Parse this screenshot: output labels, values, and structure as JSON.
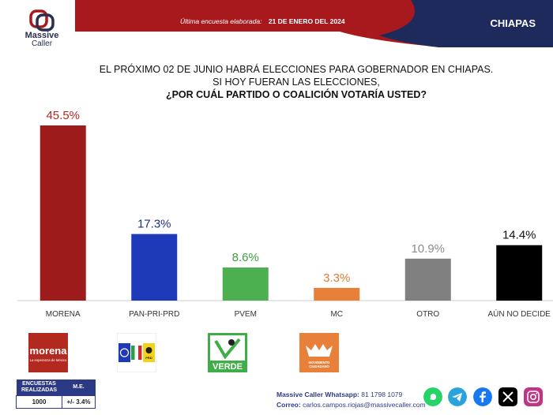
{
  "header": {
    "brand_name_line1": "Massive",
    "brand_name_line2": "Caller",
    "survey_label": "Última encuesta elaborada:",
    "survey_date": "21 DE ENERO DEL 2024",
    "state": "CHIAPAS"
  },
  "question": {
    "line1": "EL PRÓXIMO 02 DE JUNIO HABRÁ ELECCIONES PARA GOBERNADOR EN CHIAPAS.",
    "line2": "SI HOY FUERAN LAS ELECCIONES,",
    "line3": "¿POR CUÁL PARTIDO O COALICIÓN VOTARÍA USTED?"
  },
  "chart_data": {
    "type": "bar",
    "title": "¿POR CUÁL PARTIDO O COALICIÓN VOTARÍA USTED?",
    "categories": [
      "MORENA",
      "PAN-PRI-PRD",
      "PVEM",
      "MC",
      "OTRO",
      "AÚN NO DECIDE"
    ],
    "values": [
      45.5,
      17.3,
      8.6,
      3.3,
      10.9,
      14.4
    ],
    "value_labels": [
      "45.5%",
      "17.3%",
      "8.6%",
      "3.3%",
      "10.9%",
      "14.4%"
    ],
    "colors": [
      "#9e1b1b",
      "#1f3ab8",
      "#4caf50",
      "#e8803a",
      "#808080",
      "#000000"
    ],
    "label_colors": [
      "#b22a1f",
      "#1f2f80",
      "#3f9e3f",
      "#e07a35",
      "#8c8c8c",
      "#111111"
    ],
    "ylim": [
      0,
      45.5
    ],
    "xlabel": "",
    "ylabel": ""
  },
  "party_logos": [
    {
      "name": "morena",
      "text": "morena",
      "subtext": "La esperanza de México",
      "color": "#b22a1f"
    },
    {
      "name": "pan-pri-prd",
      "text": "PAN PRI PRD",
      "subtext": "",
      "color": "#1f3ab8"
    },
    {
      "name": "pvem",
      "text": "VERDE",
      "subtext": "",
      "color": "#4caf50"
    },
    {
      "name": "mc",
      "text": "MOVIMIENTO CIUDADANO",
      "subtext": "",
      "color": "#e8803a"
    }
  ],
  "footer": {
    "col1_header": "ENCUESTAS REALIZADAS",
    "col2_header": "M.E.",
    "col1_value": "1000",
    "col2_value": "+/- 3.4%",
    "whatsapp_label": "Massive Caller Whatsapp:",
    "whatsapp_number": "81 1798 1079",
    "email_label": "Correo:",
    "email": "carlos.campos.riojas@massivecaller.com"
  },
  "colors": {
    "header_red": "#a8191e",
    "header_navy": "#1f2a5c",
    "accent_navy": "#2c3a86"
  }
}
